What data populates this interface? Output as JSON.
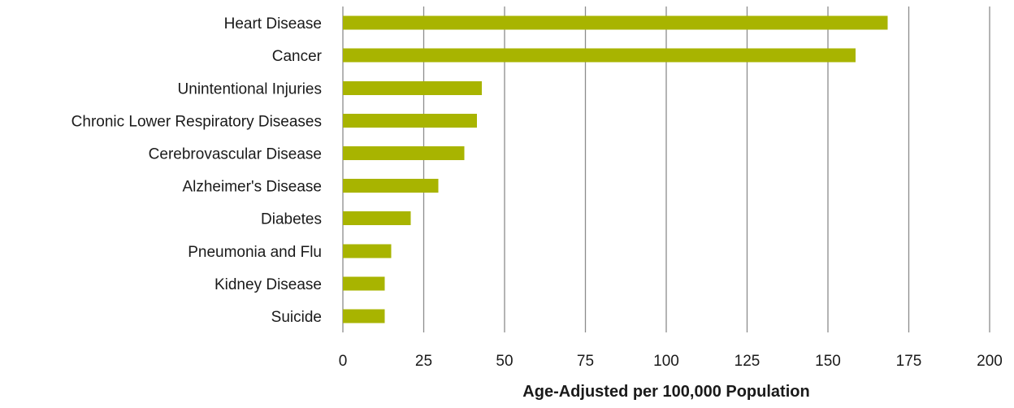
{
  "chart_data": {
    "type": "bar",
    "orientation": "horizontal",
    "categories": [
      "Heart Disease",
      "Cancer",
      "Unintentional Injuries",
      "Chronic Lower Respiratory Diseases",
      "Cerebrovascular Disease",
      "Alzheimer's Disease",
      "Diabetes",
      "Pneumonia and Flu",
      "Kidney Disease",
      "Suicide"
    ],
    "values": [
      168.5,
      158.5,
      43,
      41.5,
      37.5,
      29.5,
      21,
      15,
      13,
      13
    ],
    "xlabel": "Age-Adjusted per 100,000 Population",
    "xlim": [
      0,
      200
    ],
    "xticks": [
      0,
      25,
      50,
      75,
      100,
      125,
      150,
      175,
      200
    ],
    "grid": true,
    "bar_color": "#a8b400"
  }
}
